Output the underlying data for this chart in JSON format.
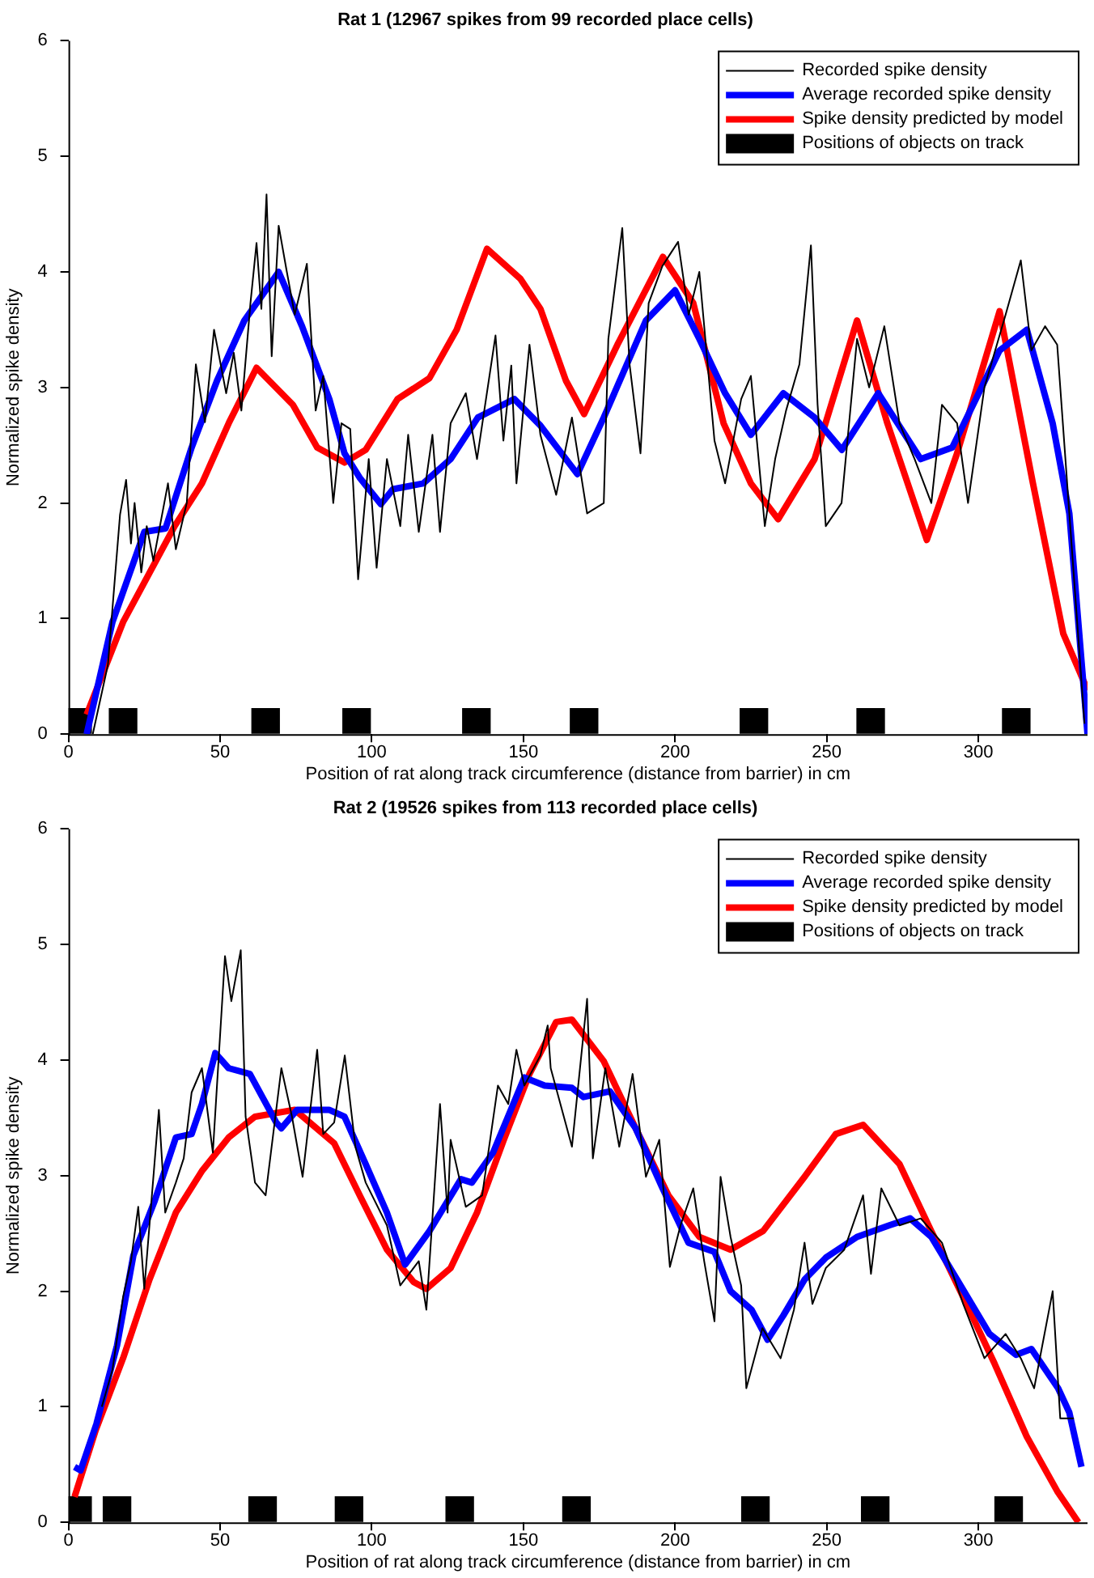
{
  "chart_data": [
    {
      "type": "line",
      "title": "Rat 1 (12967 spikes from 99 recorded place cells)",
      "xlabel": "Position of rat along track circumference (distance from barrier) in cm",
      "ylabel": "Normalized spike density",
      "xlim": [
        0,
        336
      ],
      "xticks": [
        0,
        50,
        100,
        150,
        200,
        250,
        300
      ],
      "ylim": [
        0,
        6
      ],
      "yticks": [
        0,
        1,
        2,
        3,
        4,
        5,
        6
      ],
      "grid": false,
      "legend": "top right",
      "marker": "none",
      "series": [
        {
          "name": "Recorded spike density",
          "type": "line",
          "color": "#000000",
          "x": [
            8,
            13,
            17,
            19,
            20.6,
            21.8,
            24,
            25.8,
            28,
            32.8,
            35.4,
            39,
            42,
            45,
            48,
            52,
            54.5,
            57,
            60,
            62,
            63.6,
            65.3,
            67,
            69.3,
            72,
            74.6,
            78.6,
            81.5,
            84,
            87.3,
            90,
            92.9,
            95.5,
            99,
            101.6,
            105,
            109.4,
            112,
            115.5,
            120,
            122.5,
            126,
            131,
            134.7,
            140.8,
            143.4,
            146,
            147.7,
            152,
            155.6,
            160.8,
            166,
            171,
            176.5,
            178,
            182.6,
            185,
            188.6,
            191.3,
            195.8,
            201,
            204.5,
            208,
            213,
            216.5,
            221.8,
            225,
            229.6,
            233,
            236.6,
            241,
            244.8,
            247,
            249.7,
            254.9,
            260,
            264,
            269,
            274,
            279,
            284.5,
            288,
            293,
            296.6,
            302,
            309,
            314,
            317.5,
            322,
            326,
            330,
            335
          ],
          "values": [
            0,
            0.6,
            1.9,
            2.2,
            1.65,
            2.0,
            1.4,
            1.8,
            1.5,
            2.17,
            1.6,
            2.0,
            3.2,
            2.7,
            3.5,
            2.95,
            3.3,
            2.8,
            3.73,
            4.25,
            3.68,
            4.67,
            3.27,
            4.4,
            4.0,
            3.63,
            4.07,
            2.8,
            3.1,
            2.0,
            2.69,
            2.64,
            1.34,
            2.38,
            1.44,
            2.38,
            1.8,
            2.59,
            1.75,
            2.59,
            1.75,
            2.69,
            2.95,
            2.38,
            3.45,
            2.54,
            3.19,
            2.17,
            3.37,
            2.59,
            2.07,
            2.74,
            1.91,
            2.0,
            3.42,
            4.38,
            3.2,
            2.43,
            3.73,
            4.05,
            4.26,
            3.63,
            4.0,
            2.54,
            2.17,
            2.9,
            3.1,
            1.8,
            2.38,
            2.8,
            3.2,
            4.23,
            2.85,
            1.8,
            2.0,
            3.42,
            3.0,
            3.53,
            2.69,
            2.38,
            2.0,
            2.85,
            2.69,
            2.0,
            3.0,
            3.63,
            4.1,
            3.32,
            3.53,
            3.37,
            1.91,
            0.09
          ]
        },
        {
          "name": "Average recorded spike density",
          "type": "line",
          "color": "#0000ff",
          "x": [
            6,
            14.5,
            25,
            32,
            40.6,
            49,
            58,
            65,
            69.3,
            77,
            86,
            91,
            96,
            103,
            107,
            117,
            126,
            135,
            147,
            155.6,
            167.8,
            176.5,
            190.4,
            200,
            208,
            216.5,
            225,
            235.7,
            246,
            255,
            267,
            281,
            291.4,
            307,
            316,
            324.5,
            330,
            336
          ],
          "values": [
            0,
            0.97,
            1.75,
            1.78,
            2.48,
            3.06,
            3.58,
            3.84,
            4.0,
            3.53,
            2.9,
            2.43,
            2.22,
            1.99,
            2.12,
            2.17,
            2.38,
            2.74,
            2.9,
            2.67,
            2.25,
            2.74,
            3.58,
            3.84,
            3.42,
            2.95,
            2.59,
            2.95,
            2.74,
            2.46,
            2.95,
            2.38,
            2.48,
            3.32,
            3.5,
            2.69,
            1.91,
            0
          ]
        },
        {
          "name": "Spike density predicted by model",
          "type": "line",
          "color": "#ff0000",
          "x": [
            6,
            18,
            35,
            44,
            53,
            62,
            74,
            82,
            91,
            98,
            108.5,
            119,
            128,
            138,
            149,
            155.6,
            164,
            170,
            181,
            196,
            206,
            216,
            225,
            234,
            246,
            260,
            270,
            283,
            293,
            307,
            318,
            328,
            336
          ],
          "values": [
            0.17,
            0.97,
            1.8,
            2.17,
            2.7,
            3.17,
            2.85,
            2.48,
            2.35,
            2.46,
            2.9,
            3.08,
            3.5,
            4.2,
            3.94,
            3.68,
            3.06,
            2.77,
            3.37,
            4.13,
            3.73,
            2.69,
            2.17,
            1.86,
            2.38,
            3.58,
            2.69,
            1.68,
            2.43,
            3.66,
            2.17,
            0.87,
            0.38
          ]
        },
        {
          "name": "Positions of objects on track",
          "type": "bar",
          "color": "#000000",
          "x": [
            3,
            18,
            65,
            95,
            134.5,
            170,
            226,
            264.5,
            312.5
          ],
          "values": [
            0.22,
            0.22,
            0.22,
            0.22,
            0.22,
            0.22,
            0.22,
            0.22,
            0.22
          ]
        }
      ]
    },
    {
      "type": "line",
      "title": "Rat 2 (19526 spikes from 113 recorded place cells)",
      "xlabel": "Position of rat along track circumference (distance from barrier) in cm",
      "ylabel": "Normalized spike density",
      "xlim": [
        0,
        336
      ],
      "xticks": [
        0,
        50,
        100,
        150,
        200,
        250,
        300
      ],
      "ylim": [
        0,
        6
      ],
      "yticks": [
        0,
        1,
        2,
        3,
        4,
        5,
        6
      ],
      "grid": false,
      "legend": "top right",
      "marker": "none",
      "series": [
        {
          "name": "Recorded spike density",
          "type": "line",
          "color": "#000000",
          "x": [
            11,
            14.5,
            18,
            20.6,
            23,
            25,
            26.7,
            29.8,
            31.9,
            35.4,
            38,
            40.6,
            44,
            47.6,
            51.6,
            53.7,
            56.8,
            58.4,
            61.5,
            65,
            70.2,
            73.7,
            77.2,
            82,
            84,
            87.6,
            91.1,
            94.6,
            98,
            105,
            109.4,
            115.5,
            118,
            122.5,
            125,
            126,
            131,
            136.4,
            141.6,
            145,
            147.7,
            150.3,
            155.6,
            158,
            159,
            166,
            171,
            172.9,
            177,
            181.6,
            186,
            190.4,
            194.8,
            198.3,
            201.8,
            206,
            209.6,
            213,
            215,
            218.3,
            221.8,
            223.5,
            228.8,
            234.8,
            239.2,
            242.7,
            245.3,
            249.7,
            255.8,
            262,
            264.6,
            268,
            274,
            281,
            288,
            295,
            302,
            309,
            314,
            318.4,
            324.5,
            327,
            331.5
          ],
          "values": [
            1.0,
            1.32,
            1.95,
            2.26,
            2.73,
            2.02,
            2.57,
            3.57,
            2.68,
            2.94,
            3.15,
            3.72,
            3.93,
            3.2,
            4.9,
            4.51,
            4.95,
            3.51,
            2.94,
            2.83,
            3.93,
            3.51,
            2.99,
            4.09,
            3.36,
            3.46,
            4.04,
            3.25,
            2.94,
            2.57,
            2.05,
            2.26,
            1.84,
            3.62,
            2.68,
            3.31,
            2.73,
            2.83,
            3.78,
            3.62,
            4.09,
            3.78,
            4.04,
            4.3,
            3.93,
            3.25,
            4.53,
            3.15,
            3.93,
            3.25,
            3.88,
            2.99,
            3.31,
            2.21,
            2.57,
            2.89,
            2.26,
            1.74,
            2.99,
            2.47,
            2.05,
            1.16,
            1.68,
            1.42,
            1.84,
            2.42,
            1.89,
            2.2,
            2.36,
            2.83,
            2.15,
            2.89,
            2.57,
            2.63,
            2.42,
            1.89,
            1.42,
            1.63,
            1.42,
            1.16,
            2.0,
            0.9,
            0.9
          ]
        },
        {
          "name": "Average recorded spike density",
          "type": "line",
          "color": "#0000ff",
          "x": [
            2,
            4,
            9.2,
            16,
            21.4,
            28.4,
            35.4,
            40.6,
            44,
            48.4,
            52.8,
            59.8,
            68.5,
            70.2,
            75.4,
            85.9,
            91,
            98,
            105,
            111,
            119,
            129.4,
            133,
            140,
            150.3,
            157,
            166,
            169.8,
            178.5,
            187,
            195.9,
            204.4,
            213,
            218.3,
            225.2,
            230.5,
            235.7,
            242.7,
            249.7,
            260,
            270.6,
            277.5,
            284.5,
            293,
            303.7,
            312.4,
            317.5,
            326.3,
            330,
            334
          ],
          "values": [
            0.48,
            0.45,
            0.85,
            1.53,
            2.31,
            2.78,
            3.33,
            3.36,
            3.62,
            4.06,
            3.93,
            3.88,
            3.46,
            3.41,
            3.57,
            3.57,
            3.51,
            3.1,
            2.68,
            2.23,
            2.52,
            2.97,
            2.94,
            3.2,
            3.85,
            3.78,
            3.76,
            3.68,
            3.73,
            3.41,
            2.89,
            2.42,
            2.34,
            2.0,
            1.84,
            1.58,
            1.79,
            2.1,
            2.29,
            2.47,
            2.57,
            2.63,
            2.47,
            2.1,
            1.63,
            1.45,
            1.5,
            1.16,
            0.95,
            0.48
          ]
        },
        {
          "name": "Spike density predicted by model",
          "type": "line",
          "color": "#ff0000",
          "x": [
            2,
            9,
            18,
            26.7,
            35.4,
            44,
            52.8,
            61.5,
            74.6,
            87.6,
            96,
            105,
            113.8,
            118,
            126,
            134.7,
            143.4,
            152,
            160.8,
            166,
            176.5,
            187,
            197.8,
            208,
            218.3,
            229,
            242.7,
            253,
            262,
            274,
            284.5,
            295,
            305.4,
            316,
            326,
            333
          ],
          "values": [
            0.22,
            0.8,
            1.42,
            2.1,
            2.68,
            3.04,
            3.33,
            3.51,
            3.57,
            3.28,
            2.83,
            2.36,
            2.08,
            2.02,
            2.2,
            2.68,
            3.3,
            3.88,
            4.33,
            4.35,
            3.99,
            3.41,
            2.83,
            2.47,
            2.36,
            2.52,
            2.99,
            3.36,
            3.44,
            3.1,
            2.52,
            1.95,
            1.37,
            0.74,
            0.27,
            0
          ]
        },
        {
          "name": "Positions of objects on track",
          "type": "bar",
          "color": "#000000",
          "x": [
            3,
            16,
            64,
            92.5,
            129,
            167.5,
            226.5,
            266,
            310
          ],
          "values": [
            0.22,
            0.22,
            0.22,
            0.22,
            0.22,
            0.22,
            0.22,
            0.22,
            0.22
          ]
        }
      ]
    }
  ]
}
